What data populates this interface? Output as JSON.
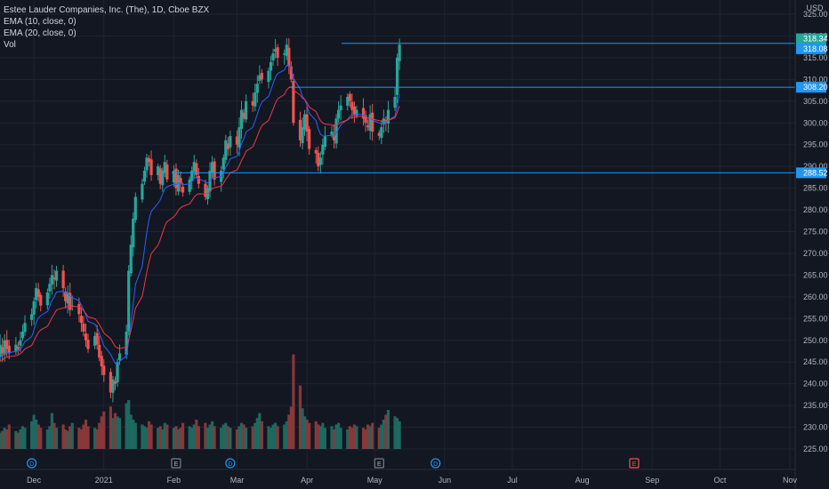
{
  "legend": {
    "title": "Estee Lauder Companies, Inc. (The), 1D, Cboe BZX",
    "ema10": "EMA (10, close, 0)",
    "ema20": "EMA (20, close, 0)",
    "vol": "Vol"
  },
  "price_axis": {
    "currency": "USD",
    "ticks": [
      325,
      320,
      315,
      310,
      305,
      300,
      295,
      290,
      285,
      280,
      275,
      270,
      265,
      260,
      255,
      250,
      245,
      240,
      235,
      230,
      225
    ],
    "tick_labels": [
      "325.00",
      "320.00",
      "315.00",
      "310.00",
      "305.00",
      "300.00",
      "295.00",
      "290.00",
      "285.00",
      "280.00",
      "275.00",
      "270.00",
      "265.00",
      "260.00",
      "255.00",
      "250.00",
      "245.00",
      "240.00",
      "235.00",
      "230.00",
      "225.00"
    ]
  },
  "time_axis": {
    "labels": [
      "Dec",
      "2021",
      "Feb",
      "Mar",
      "Apr",
      "May",
      "Jun",
      "Jul",
      "Aug",
      "Sep",
      "Oct",
      "Nov"
    ]
  },
  "price_tags": [
    {
      "label": "318.34",
      "value": 318.34
    },
    {
      "label": "318.08",
      "value": 318.08
    },
    {
      "label": "308.20",
      "value": 308.2
    },
    {
      "label": "288.52",
      "value": 288.52
    }
  ],
  "horizontal_levels": [
    318.3,
    308.2,
    288.52
  ],
  "event_markers": [
    {
      "type": "dividend",
      "label": "D",
      "date": "2020-11-30"
    },
    {
      "type": "earnings",
      "label": "E",
      "date": "2021-02-02"
    },
    {
      "type": "dividend",
      "label": "D",
      "date": "2021-02-26"
    },
    {
      "type": "earnings",
      "label": "E",
      "date": "2021-05-03"
    },
    {
      "type": "dividend",
      "label": "D",
      "date": "2021-05-28"
    },
    {
      "type": "earnings",
      "label": "E",
      "date": "2021-08-24"
    }
  ],
  "colors": {
    "background": "#131722",
    "up": "#26a69a",
    "down": "#ef5350",
    "ema10": "#2962ff",
    "ema20": "#f23645",
    "level": "#2196f3",
    "text": "#b2b5be"
  },
  "chart_data": {
    "type": "candlestick",
    "title": "Estee Lauder Companies, Inc. (The), 1D, Cboe BZX",
    "x_start": "2020-11-20",
    "x_end": "2021-11-10",
    "ylim": [
      222.5,
      327
    ],
    "grid": true,
    "legend_position": "top-left",
    "indicators": [
      "EMA (10, close, 0)",
      "EMA (20, close, 0)",
      "Vol"
    ],
    "closes": [
      244,
      246,
      247,
      245,
      248,
      246,
      249,
      247,
      250,
      248,
      247,
      249,
      248,
      250,
      252,
      254,
      256,
      259,
      262,
      260,
      258,
      261,
      263,
      265,
      264,
      266,
      262,
      259,
      261,
      257,
      258,
      256,
      254,
      252,
      250,
      248,
      251,
      249,
      246,
      244,
      242,
      238,
      241,
      240,
      245,
      247,
      252,
      266,
      272,
      278,
      283,
      286,
      289,
      292,
      291,
      288,
      290,
      286,
      289,
      291,
      287,
      289,
      285,
      288,
      286,
      284,
      287,
      289,
      291,
      288,
      286,
      283,
      285,
      289,
      291,
      287,
      289,
      292,
      296,
      294,
      297,
      295,
      299,
      303,
      301,
      305,
      304,
      307,
      309,
      311,
      310,
      312,
      314,
      316,
      317,
      315,
      316,
      318,
      313,
      310,
      300,
      296,
      299,
      302,
      298,
      294,
      293,
      290,
      292,
      295,
      297,
      298,
      296,
      301,
      303,
      304,
      306,
      305,
      303,
      302,
      303,
      301,
      300,
      299,
      302,
      298,
      297,
      299,
      301,
      300,
      303,
      306,
      315,
      318
    ],
    "volumes": [
      1.2,
      1.4,
      1.1,
      1.3,
      1.6,
      1.2,
      1.0,
      1.1,
      1.3,
      1.2,
      1.5,
      1.1,
      1.0,
      1.2,
      1.4,
      1.3,
      1.7,
      2.1,
      1.8,
      1.5,
      1.3,
      1.2,
      1.4,
      2.2,
      1.6,
      1.3,
      1.5,
      1.2,
      1.1,
      1.4,
      1.6,
      1.3,
      1.2,
      1.5,
      1.8,
      1.4,
      1.3,
      1.2,
      1.6,
      2.0,
      2.3,
      2.6,
      1.9,
      2.2,
      2.0,
      1.9,
      2.8,
      3.0,
      2.1,
      1.8,
      1.6,
      1.5,
      1.4,
      1.3,
      1.7,
      1.5,
      1.3,
      1.4,
      1.2,
      1.6,
      1.5,
      1.3,
      1.4,
      1.2,
      1.3,
      1.6,
      1.4,
      1.3,
      1.5,
      1.8,
      1.4,
      1.6,
      1.3,
      1.5,
      1.7,
      1.4,
      1.3,
      1.5,
      1.6,
      1.4,
      1.3,
      1.2,
      1.4,
      1.6,
      1.5,
      1.3,
      1.4,
      1.6,
      1.9,
      2.2,
      1.7,
      1.4,
      1.3,
      1.5,
      1.6,
      1.4,
      1.5,
      1.7,
      2.1,
      2.6,
      5.8,
      3.9,
      2.5,
      2.0,
      1.8,
      1.6,
      1.7,
      1.5,
      1.4,
      1.6,
      1.3,
      1.4,
      1.2,
      1.5,
      1.6,
      1.3,
      1.2,
      1.4,
      1.3,
      1.5,
      1.4,
      1.3,
      1.2,
      1.5,
      1.4,
      1.6,
      1.3,
      1.5,
      1.8,
      2.1,
      2.4,
      2.0,
      1.9,
      1.7
    ]
  }
}
